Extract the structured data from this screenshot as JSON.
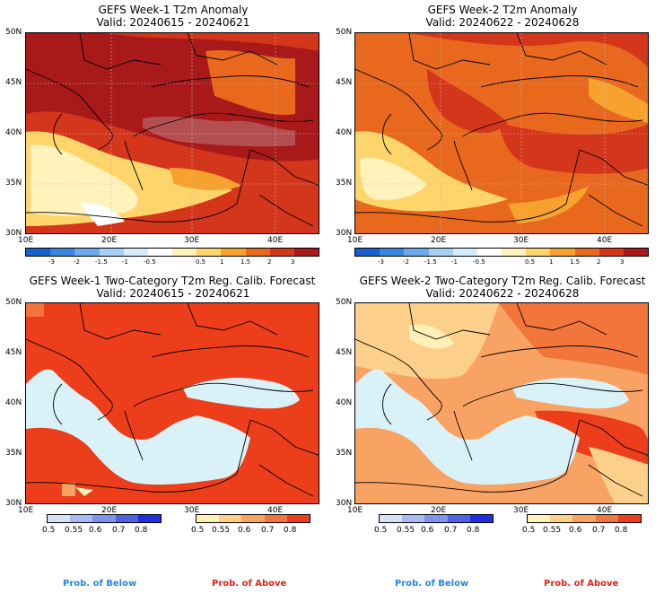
{
  "panels": {
    "p1": {
      "title": "GEFS Week-1 T2m Anomaly",
      "valid": "Valid: 20240615 - 20240621"
    },
    "p2": {
      "title": "GEFS Week-2 T2m Anomaly",
      "valid": "Valid: 20240622 - 20240628"
    },
    "p3": {
      "title": "GEFS Week-1 Two-Category T2m Reg. Calib. Forecast",
      "valid": "Valid: 20240615 - 20240621"
    },
    "p4": {
      "title": "GEFS Week-2 Two-Category T2m Reg. Calib. Forecast",
      "valid": "Valid: 20240622 - 20240628"
    }
  },
  "lat_labels": [
    "50N",
    "45N",
    "40N",
    "35N",
    "30N"
  ],
  "lon_labels": [
    "10E",
    "20E",
    "30E",
    "40E"
  ],
  "anomaly_ticks": [
    "-3",
    "-2",
    "-1.5",
    "-1",
    "-0.5",
    "0.5",
    "1",
    "1.5",
    "2",
    "3"
  ],
  "anomaly_colors": [
    "#1b5fc8",
    "#3a86dd",
    "#6aa9ec",
    "#a8d0f5",
    "#d6ebfb",
    "#ffffff",
    "#fff2bb",
    "#fed56a",
    "#f7a12e",
    "#e8681d",
    "#d4361b",
    "#a8191a"
  ],
  "prob_ticks": [
    "0.5",
    "0.55",
    "0.6",
    "0.7",
    "0.8"
  ],
  "below_colors": [
    "#d8dff9",
    "#a9b9f2",
    "#7f93ea",
    "#4f63e2",
    "#1f2fe0"
  ],
  "above_colors": [
    "#fff0b8",
    "#fcd08a",
    "#f8a363",
    "#f2753b",
    "#ec3e1a"
  ],
  "legend": {
    "below": "Prob. of Below",
    "above": "Prob. of Above"
  },
  "colors": {
    "below_text": "#2a86e0",
    "above_text": "#e0251b",
    "sea": "#d9f2f7"
  }
}
